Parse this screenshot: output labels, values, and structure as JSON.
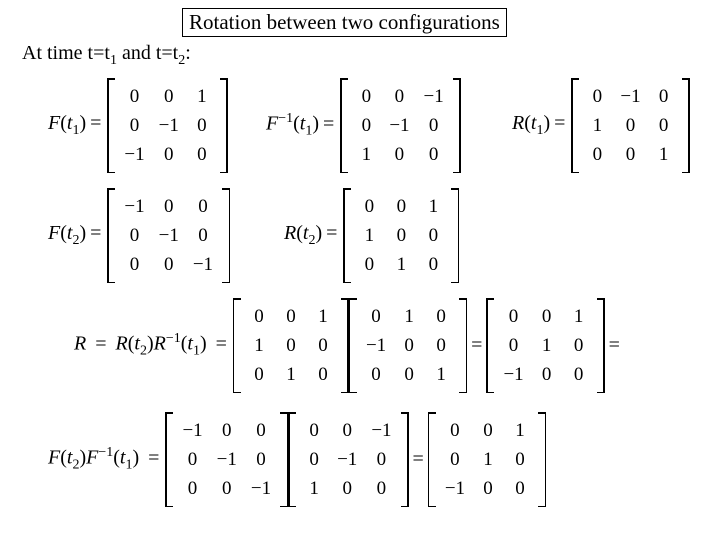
{
  "title": "Rotation between two configurations",
  "intro_prefix": "At time t=t",
  "intro_sub1": "1",
  "intro_mid": " and t=t",
  "intro_sub2": "2",
  "intro_suffix": ":",
  "labels": {
    "F": "F",
    "Finv": "F",
    "R": "R",
    "t1": "t",
    "t2": "t",
    "sub1": "1",
    "sub2": "2",
    "inv": "−1",
    "invplain": "-1",
    "open": "(",
    "close": ")",
    "eq": "="
  },
  "matrices": {
    "Ft1": [
      [
        "0",
        "0",
        "1"
      ],
      [
        "0",
        "−1",
        "0"
      ],
      [
        "−1",
        "0",
        "0"
      ]
    ],
    "Finvt1": [
      [
        "0",
        "0",
        "−1"
      ],
      [
        "0",
        "−1",
        "0"
      ],
      [
        "1",
        "0",
        "0"
      ]
    ],
    "Rt1": [
      [
        "0",
        "−1",
        "0"
      ],
      [
        "1",
        "0",
        "0"
      ],
      [
        "0",
        "0",
        "1"
      ]
    ],
    "Ft2": [
      [
        "−1",
        "0",
        "0"
      ],
      [
        "0",
        "−1",
        "0"
      ],
      [
        "0",
        "0",
        "−1"
      ]
    ],
    "Rt2": [
      [
        "0",
        "0",
        "1"
      ],
      [
        "1",
        "0",
        "0"
      ],
      [
        "0",
        "1",
        "0"
      ]
    ],
    "Rt1inv": [
      [
        "0",
        "1",
        "0"
      ],
      [
        "−1",
        "0",
        "0"
      ],
      [
        "0",
        "0",
        "1"
      ]
    ],
    "Rprod": [
      [
        "0",
        "0",
        "1"
      ],
      [
        "0",
        "1",
        "0"
      ],
      [
        "−1",
        "0",
        "0"
      ]
    ],
    "FF_A": [
      [
        "−1",
        "0",
        "0"
      ],
      [
        "0",
        "−1",
        "0"
      ],
      [
        "0",
        "0",
        "−1"
      ]
    ],
    "FF_B": [
      [
        "0",
        "0",
        "−1"
      ],
      [
        "0",
        "−1",
        "0"
      ],
      [
        "1",
        "0",
        "0"
      ]
    ],
    "FF_R": [
      [
        "0",
        "0",
        "1"
      ],
      [
        "0",
        "1",
        "0"
      ],
      [
        "−1",
        "0",
        "0"
      ]
    ]
  },
  "style": {
    "font": "Times New Roman",
    "title_fontsize": 21,
    "body_fontsize": 20,
    "matrix_fontsize": 19,
    "text_color": "#000000",
    "background_color": "#ffffff",
    "border_color": "#000000"
  }
}
